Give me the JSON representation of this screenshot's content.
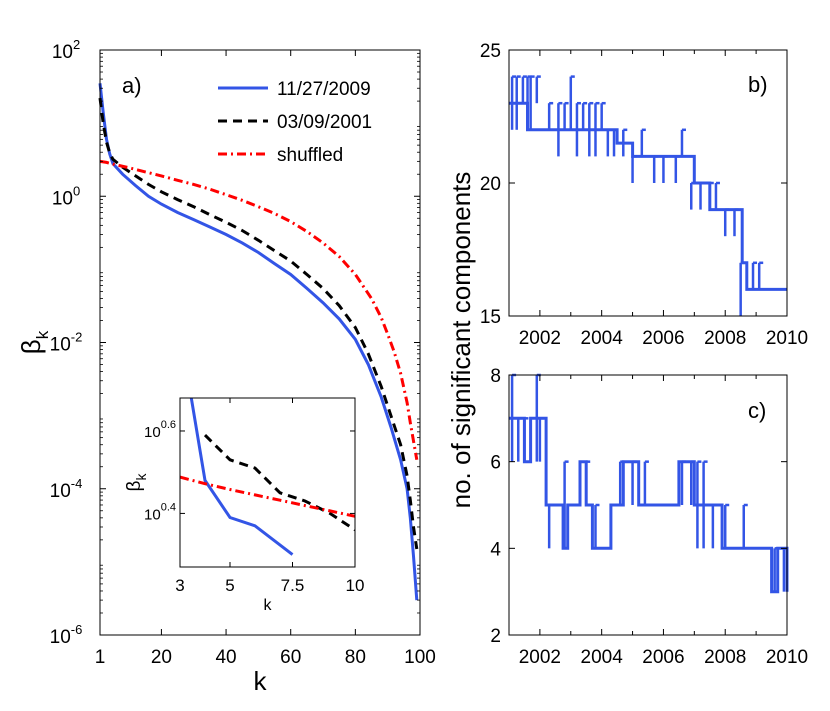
{
  "chart_data": [
    {
      "id": "a",
      "panel_label": "a)",
      "type": "line",
      "yscale": "log",
      "xlabel": "k",
      "ylabel_main": "β",
      "ylabel_sub": "k",
      "xlim": [
        1,
        100
      ],
      "ylim_exp": [
        -6,
        2
      ],
      "xticks": [
        1,
        20,
        40,
        60,
        80,
        100
      ],
      "yticks": [
        {
          "base": "10",
          "exp": "2",
          "e": 2
        },
        {
          "base": "10",
          "exp": "0",
          "e": 0
        },
        {
          "base": "10",
          "exp": "-2",
          "e": -2
        },
        {
          "base": "10",
          "exp": "-4",
          "e": -4
        },
        {
          "base": "10",
          "exp": "-6",
          "e": -6
        }
      ],
      "legend_position": "top-right",
      "series": [
        {
          "name": "11/27/2009",
          "color": "#3355e6",
          "dash": "solid",
          "x": [
            1,
            2,
            3,
            4,
            5,
            8,
            12,
            16,
            20,
            25,
            30,
            35,
            40,
            45,
            50,
            55,
            60,
            65,
            70,
            75,
            80,
            84,
            88,
            91,
            94,
            96,
            97,
            98,
            99
          ],
          "y": [
            35,
            14,
            6,
            3.8,
            2.8,
            2.0,
            1.4,
            1.0,
            0.78,
            0.6,
            0.48,
            0.38,
            0.3,
            0.23,
            0.17,
            0.12,
            0.085,
            0.055,
            0.035,
            0.021,
            0.011,
            0.005,
            0.0018,
            0.0007,
            0.00025,
            0.0001,
            4e-05,
            1.2e-05,
            3e-06
          ]
        },
        {
          "name": "03/09/2001",
          "color": "#000000",
          "dash": "dashed",
          "x": [
            1,
            2,
            3,
            4,
            5,
            8,
            12,
            16,
            20,
            25,
            30,
            35,
            40,
            45,
            50,
            55,
            60,
            65,
            70,
            75,
            80,
            84,
            88,
            91,
            94,
            96,
            97,
            98,
            99
          ],
          "y": [
            22,
            10,
            5.5,
            3.9,
            3.2,
            2.5,
            1.9,
            1.45,
            1.15,
            0.9,
            0.72,
            0.56,
            0.44,
            0.34,
            0.25,
            0.18,
            0.13,
            0.085,
            0.055,
            0.032,
            0.016,
            0.007,
            0.0025,
            0.001,
            0.0004,
            0.00015,
            7e-05,
            3e-05,
            1.5e-05
          ]
        },
        {
          "name": "shuffled",
          "color": "#ff0000",
          "dash": "dashdot",
          "x": [
            1,
            3,
            5,
            10,
            15,
            20,
            25,
            30,
            35,
            40,
            45,
            50,
            55,
            60,
            65,
            70,
            75,
            80,
            85,
            88,
            90,
            92,
            94,
            96,
            97,
            98,
            99
          ],
          "y": [
            3.0,
            2.9,
            2.75,
            2.45,
            2.15,
            1.9,
            1.65,
            1.45,
            1.25,
            1.05,
            0.88,
            0.72,
            0.58,
            0.45,
            0.33,
            0.23,
            0.15,
            0.085,
            0.04,
            0.022,
            0.013,
            0.0075,
            0.0038,
            0.0015,
            0.0008,
            0.00045,
            0.00025
          ]
        }
      ],
      "inset": {
        "xlabel": "k",
        "ylabel_main": "β",
        "ylabel_sub": "k",
        "xlim": [
          3,
          10
        ],
        "ylim_exp": [
          0.27,
          0.68
        ],
        "xticks": [
          3,
          5,
          7.5,
          10
        ],
        "xtick_labels": [
          "3",
          "5",
          "7.5",
          "10"
        ],
        "yticks": [
          {
            "base": "10",
            "exp": "0.6",
            "e": 0.6
          },
          {
            "base": "10",
            "exp": "0.4",
            "e": 0.4
          }
        ],
        "series": [
          {
            "name": "11/27/2009",
            "color": "#3355e6",
            "dash": "solid",
            "x": [
              3.45,
              4.0,
              5.0,
              6.0,
              7.5
            ],
            "y_exp": [
              0.68,
              0.48,
              0.39,
              0.37,
              0.3
            ]
          },
          {
            "name": "03/09/2001",
            "color": "#000000",
            "dash": "dashed",
            "x": [
              4.0,
              5.0,
              6.0,
              7.0,
              8.0,
              9.0,
              10.0
            ],
            "y_exp": [
              0.59,
              0.53,
              0.51,
              0.45,
              0.43,
              0.4,
              0.36
            ]
          },
          {
            "name": "shuffled",
            "color": "#ff0000",
            "dash": "dashdot",
            "x": [
              3.0,
              4.0,
              5.0,
              6.0,
              7.0,
              8.0,
              9.0,
              10.0
            ],
            "y_exp": [
              0.488,
              0.472,
              0.458,
              0.445,
              0.432,
              0.419,
              0.406,
              0.393
            ]
          }
        ]
      }
    },
    {
      "id": "b",
      "panel_label": "b)",
      "type": "line",
      "xlim": [
        2001,
        2010
      ],
      "ylim": [
        15,
        25
      ],
      "xticks": [
        2002,
        2004,
        2006,
        2008,
        2010
      ],
      "yticks": [
        15,
        20,
        25
      ],
      "color": "#3355e6",
      "segments": [
        [
          2001.0,
          23
        ],
        [
          2001.3,
          23
        ],
        [
          2001.6,
          22
        ],
        [
          2002.0,
          22
        ],
        [
          2002.6,
          22
        ],
        [
          2003.0,
          22
        ],
        [
          2003.6,
          22
        ],
        [
          2004.0,
          22
        ],
        [
          2004.5,
          21.5
        ],
        [
          2005.0,
          21
        ],
        [
          2005.5,
          21
        ],
        [
          2006.0,
          21
        ],
        [
          2006.7,
          21
        ],
        [
          2007.0,
          20
        ],
        [
          2007.5,
          19
        ],
        [
          2008.0,
          19
        ],
        [
          2008.3,
          19
        ],
        [
          2008.55,
          17
        ],
        [
          2008.7,
          16
        ],
        [
          2009.0,
          16
        ],
        [
          2009.5,
          16
        ],
        [
          2010.0,
          16
        ]
      ],
      "spikes": [
        [
          2001.1,
          22,
          24
        ],
        [
          2001.25,
          22,
          24
        ],
        [
          2001.45,
          23,
          24
        ],
        [
          2001.6,
          23,
          24
        ],
        [
          2001.7,
          22,
          24
        ],
        [
          2001.9,
          23,
          24
        ],
        [
          2002.3,
          22,
          23
        ],
        [
          2002.6,
          21,
          23
        ],
        [
          2002.8,
          22,
          23
        ],
        [
          2003.0,
          22,
          24
        ],
        [
          2003.2,
          21,
          23
        ],
        [
          2003.4,
          22,
          23
        ],
        [
          2003.6,
          21,
          23
        ],
        [
          2003.8,
          21,
          23
        ],
        [
          2004.0,
          22,
          23
        ],
        [
          2004.2,
          21,
          22
        ],
        [
          2004.4,
          21,
          22
        ],
        [
          2004.7,
          21,
          22
        ],
        [
          2005.0,
          20,
          21
        ],
        [
          2005.3,
          21,
          22
        ],
        [
          2005.7,
          20,
          21
        ],
        [
          2006.0,
          20,
          21
        ],
        [
          2006.4,
          20,
          21
        ],
        [
          2006.6,
          21,
          22
        ],
        [
          2006.9,
          19,
          20
        ],
        [
          2007.2,
          19,
          20
        ],
        [
          2007.5,
          19,
          20
        ],
        [
          2007.7,
          19,
          20
        ],
        [
          2008.0,
          18,
          19
        ],
        [
          2008.3,
          18,
          19
        ],
        [
          2008.5,
          15,
          17
        ],
        [
          2008.9,
          16,
          17
        ],
        [
          2009.1,
          16,
          17
        ]
      ]
    },
    {
      "id": "c",
      "panel_label": "c)",
      "type": "line",
      "xlim": [
        2001,
        2010
      ],
      "ylim": [
        2,
        8
      ],
      "xticks": [
        2002,
        2004,
        2006,
        2008,
        2010
      ],
      "yticks": [
        2,
        4,
        6,
        8
      ],
      "color": "#3355e6",
      "segments": [
        [
          2001.0,
          7
        ],
        [
          2001.3,
          7
        ],
        [
          2001.5,
          6
        ],
        [
          2001.7,
          7
        ],
        [
          2002.0,
          7
        ],
        [
          2002.2,
          5
        ],
        [
          2002.6,
          5
        ],
        [
          2002.75,
          4
        ],
        [
          2002.9,
          5
        ],
        [
          2003.3,
          6
        ],
        [
          2003.5,
          5
        ],
        [
          2003.7,
          4
        ],
        [
          2004.0,
          4
        ],
        [
          2004.3,
          5
        ],
        [
          2004.7,
          6
        ],
        [
          2005.2,
          5
        ],
        [
          2006.0,
          5
        ],
        [
          2006.5,
          6
        ],
        [
          2007.0,
          5
        ],
        [
          2007.5,
          5
        ],
        [
          2007.9,
          4
        ],
        [
          2008.5,
          4
        ],
        [
          2009.0,
          4
        ],
        [
          2009.5,
          3
        ],
        [
          2009.7,
          4
        ],
        [
          2010.0,
          3
        ]
      ],
      "spikes": [
        [
          2001.1,
          6,
          8
        ],
        [
          2001.3,
          6,
          7
        ],
        [
          2001.5,
          6,
          7
        ],
        [
          2001.9,
          6,
          8
        ],
        [
          2002.0,
          6,
          7
        ],
        [
          2002.3,
          4,
          5
        ],
        [
          2002.8,
          4,
          6
        ],
        [
          2003.5,
          5,
          6
        ],
        [
          2003.8,
          4,
          5
        ],
        [
          2004.6,
          5,
          6
        ],
        [
          2005.0,
          5,
          6
        ],
        [
          2005.4,
          5,
          6
        ],
        [
          2006.6,
          5,
          6
        ],
        [
          2006.9,
          5,
          6
        ],
        [
          2007.1,
          4,
          6
        ],
        [
          2007.3,
          4,
          6
        ],
        [
          2007.6,
          4,
          5
        ],
        [
          2008.0,
          4,
          5
        ],
        [
          2008.6,
          4,
          5
        ],
        [
          2009.6,
          3,
          4
        ],
        [
          2009.9,
          3,
          4
        ]
      ]
    }
  ],
  "shared_ylabel_bc": "no. of significant components"
}
